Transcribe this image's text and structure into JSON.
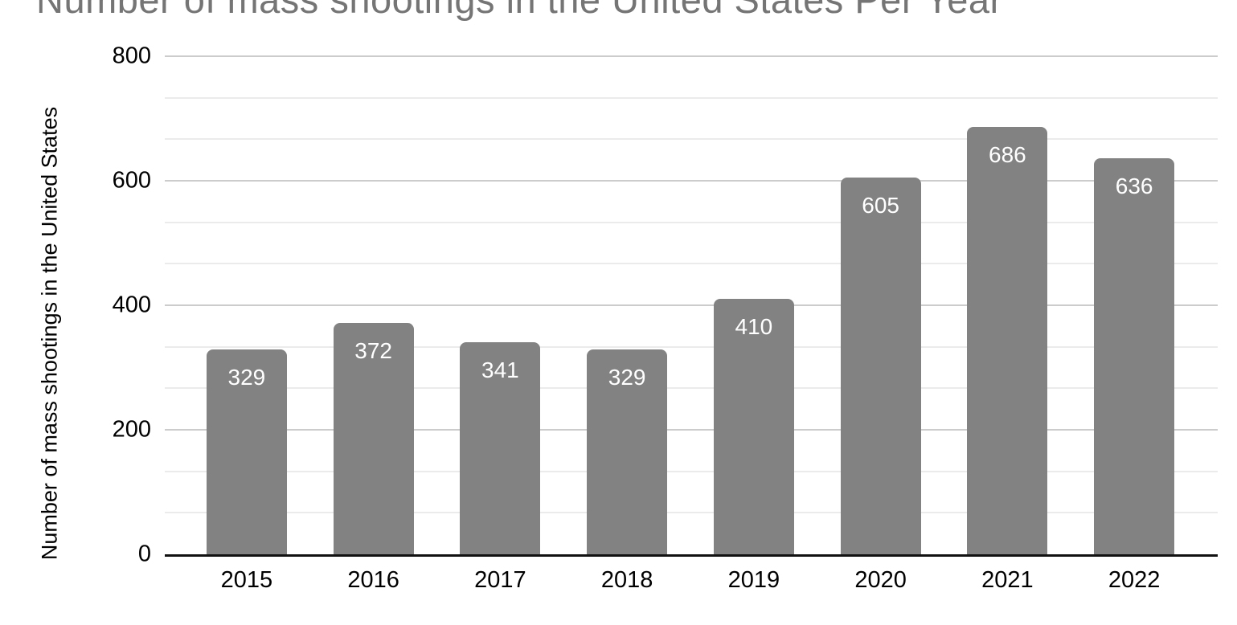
{
  "chart_data": {
    "type": "bar",
    "title": "Number of mass shootings in the United States Per Year",
    "title_note": "title is cropped at the top edge of the screenshot",
    "xlabel": "",
    "ylabel": "Number of mass shootings in the United States",
    "categories": [
      "2015",
      "2016",
      "2017",
      "2018",
      "2019",
      "2020",
      "2021",
      "2022"
    ],
    "values": [
      329,
      372,
      341,
      329,
      410,
      605,
      686,
      636
    ],
    "value_labels": [
      "329",
      "372",
      "341",
      "329",
      "410",
      "605",
      "686",
      "636"
    ],
    "ylim": [
      0,
      800
    ],
    "yticks": [
      0,
      200,
      400,
      600,
      800
    ],
    "ytick_labels": [
      "0",
      "200",
      "400",
      "600",
      "800"
    ],
    "minor_gridlines_per_interval": 2,
    "grid": "horizontal",
    "legend": "none",
    "bar_corner_radius_px": 8
  },
  "colors": {
    "bar_fill": "#828282",
    "value_label": "#ffffff",
    "gridline_major": "#cccccc",
    "gridline_minor": "#ebebeb",
    "axis_line": "#111111",
    "title_color": "#757575",
    "tick_label_color": "#000000",
    "background": "#ffffff"
  }
}
